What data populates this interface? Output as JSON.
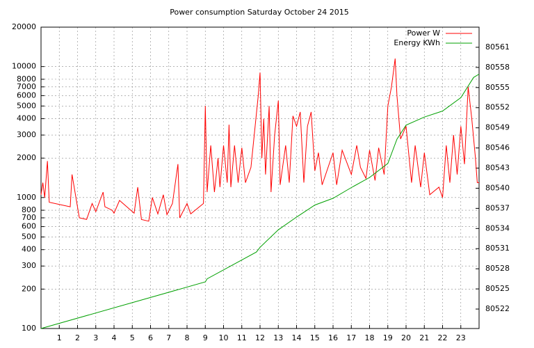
{
  "chart_data": {
    "type": "line",
    "title": "Power consumption Saturday October 24 2015",
    "xlim": [
      0,
      24
    ],
    "xticks": [
      1,
      2,
      3,
      4,
      5,
      6,
      7,
      8,
      9,
      10,
      11,
      12,
      13,
      14,
      15,
      16,
      17,
      18,
      19,
      20,
      21,
      22,
      23
    ],
    "ylim": [
      100,
      20000
    ],
    "log_y": true,
    "grid": true,
    "legend": "upper right",
    "yticks": [
      100,
      200,
      300,
      400,
      500,
      600,
      700,
      800,
      1000,
      2000,
      3000,
      4000,
      5000,
      6000,
      7000,
      8000,
      10000,
      20000
    ],
    "y2lim": [
      80519.1,
      80564.0
    ],
    "y2ticks": [
      80522,
      80525,
      80528,
      80531,
      80534,
      80537,
      80540,
      80543,
      80546,
      80549,
      80552,
      80555,
      80558,
      80561
    ],
    "series": [
      {
        "name": "Power W",
        "color": "#ff0000",
        "x": [
          0,
          0.1,
          0.2,
          0.35,
          0.45,
          1.6,
          1.7,
          2.1,
          2.5,
          2.8,
          3.0,
          3.4,
          3.5,
          3.9,
          4.0,
          4.3,
          4.7,
          5.1,
          5.3,
          5.5,
          5.9,
          6.1,
          6.4,
          6.7,
          6.9,
          7.2,
          7.5,
          7.6,
          8.0,
          8.2,
          8.9,
          9.0,
          9.1,
          9.3,
          9.5,
          9.7,
          9.8,
          10.0,
          10.2,
          10.3,
          10.4,
          10.6,
          10.8,
          11.0,
          11.2,
          11.5,
          11.9,
          12.0,
          12.1,
          12.2,
          12.3,
          12.5,
          12.6,
          12.8,
          13.0,
          13.1,
          13.4,
          13.6,
          13.8,
          14.0,
          14.2,
          14.4,
          14.6,
          14.8,
          15.0,
          15.2,
          15.4,
          16.0,
          16.2,
          16.5,
          17.0,
          17.3,
          17.5,
          17.8,
          18.0,
          18.3,
          18.5,
          18.8,
          19.0,
          19.2,
          19.4,
          19.5,
          19.7,
          20.0,
          20.3,
          20.5,
          20.8,
          21.0,
          21.3,
          21.8,
          22.0,
          22.2,
          22.4,
          22.6,
          22.8,
          23.0,
          23.2,
          23.4,
          23.6,
          23.8,
          23.9,
          24
        ],
        "values": [
          1050,
          1300,
          1000,
          1900,
          920,
          850,
          1500,
          700,
          680,
          900,
          780,
          1100,
          850,
          800,
          760,
          950,
          850,
          760,
          1200,
          680,
          660,
          1000,
          750,
          1050,
          740,
          900,
          1800,
          700,
          900,
          750,
          900,
          5000,
          1100,
          2500,
          1100,
          2000,
          1200,
          2500,
          1300,
          3600,
          1200,
          2500,
          1300,
          2400,
          1300,
          1700,
          6000,
          9000,
          2000,
          4000,
          1500,
          5000,
          1100,
          3000,
          5500,
          1250,
          2500,
          1300,
          4200,
          3500,
          4500,
          1300,
          3500,
          4500,
          1600,
          2200,
          1250,
          2200,
          1250,
          2300,
          1500,
          2500,
          1700,
          1400,
          2300,
          1350,
          2400,
          1500,
          5000,
          7000,
          11500,
          6000,
          2800,
          3500,
          1300,
          2500,
          1200,
          2200,
          1050,
          1200,
          1000,
          2500,
          1300,
          3000,
          1500,
          3500,
          1800,
          7000,
          4000,
          2000,
          1300,
          1300
        ]
      },
      {
        "name": "Energy KWh",
        "color": "#00a000",
        "axis": "y2",
        "x": [
          0,
          9,
          9.1,
          11.8,
          12,
          13,
          14,
          15,
          16,
          17,
          18,
          19,
          19.5,
          20,
          21,
          22,
          23,
          23.7,
          24
        ],
        "values": [
          80519.1,
          80526.05,
          80526.5,
          80530.5,
          80531.2,
          80533.8,
          80535.7,
          80537.5,
          80538.5,
          80540.1,
          80541.6,
          80543.7,
          80547.3,
          80549.4,
          80550.6,
          80551.5,
          80553.5,
          80556.5,
          80557.0
        ]
      }
    ]
  }
}
